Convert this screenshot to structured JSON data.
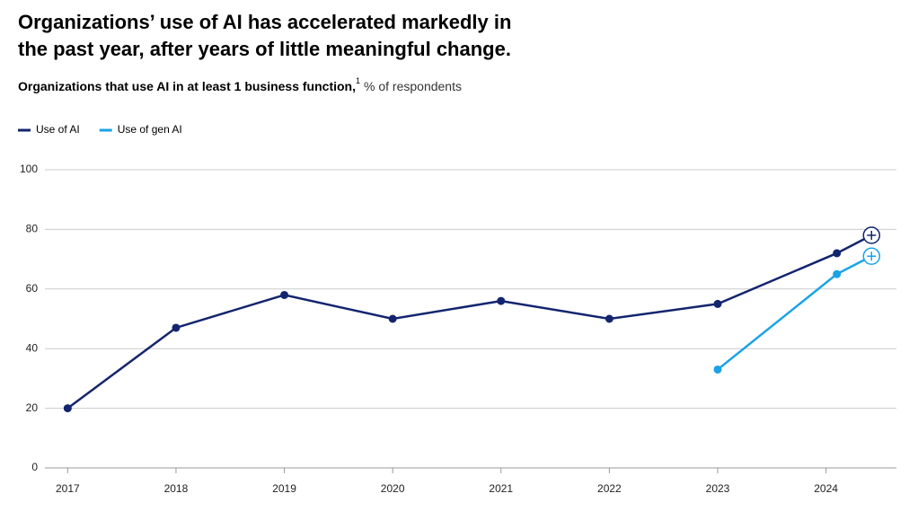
{
  "chart_data": {
    "type": "line",
    "title_lines": [
      "Organizations’ use of AI has accelerated markedly in",
      "the past year, after years of little meaningful change."
    ],
    "subtitle": "Organizations that use AI in at least 1 business function,",
    "subtitle_note": "1",
    "y_unit": "% of respondents",
    "series": [
      {
        "name": "Use of AI",
        "color": "#13256e",
        "x": [
          2017,
          2018,
          2019,
          2020,
          2021,
          2022,
          2023,
          2024.1,
          2024.42
        ],
        "values": [
          20,
          47,
          58,
          50,
          56,
          50,
          55,
          72,
          78
        ]
      },
      {
        "name": "Use of gen AI",
        "color": "#1aa3e6",
        "x": [
          2023,
          2024.1,
          2024.42
        ],
        "values": [
          33,
          65,
          71
        ]
      }
    ],
    "xlim": [
      2016.79,
      2024.65
    ],
    "xticks": [
      2017,
      2018,
      2019,
      2020,
      2021,
      2022,
      2023,
      2024
    ],
    "ylim": [
      0,
      100
    ],
    "yticks": [
      0,
      20,
      40,
      60,
      80,
      100
    ],
    "grid": true
  }
}
